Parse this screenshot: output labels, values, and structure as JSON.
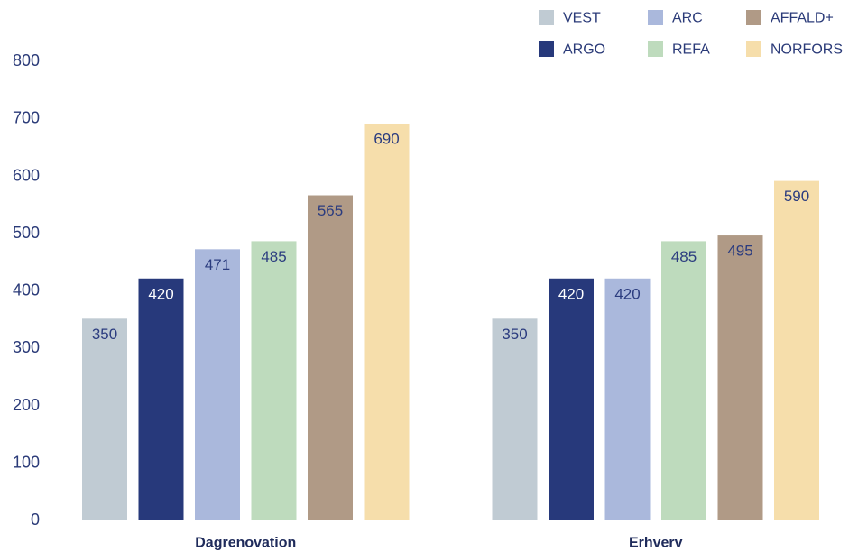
{
  "chart_data": {
    "type": "bar",
    "categories": [
      "Dagrenovation",
      "Erhverv"
    ],
    "series": [
      {
        "name": "VEST",
        "color": "#C0CBD3",
        "label_color": "#2B3C7F",
        "values": [
          350,
          350
        ]
      },
      {
        "name": "ARGO",
        "color": "#27397B",
        "label_color": "#FFFFFF",
        "values": [
          420,
          420
        ]
      },
      {
        "name": "ARC",
        "color": "#AAB8DC",
        "label_color": "#2B3C7F",
        "values": [
          471,
          420
        ]
      },
      {
        "name": "REFA",
        "color": "#BEDBBD",
        "label_color": "#2B3C7F",
        "values": [
          485,
          485
        ]
      },
      {
        "name": "AFFALD+",
        "color": "#B09A86",
        "label_color": "#2B3C7F",
        "values": [
          565,
          495
        ]
      },
      {
        "name": "NORFORS",
        "color": "#F6DEAB",
        "label_color": "#2B3C7F",
        "values": [
          690,
          590
        ]
      }
    ],
    "ylim": [
      0,
      800
    ],
    "yticks": [
      0,
      100,
      200,
      300,
      400,
      500,
      600,
      700,
      800
    ],
    "data_labels": true,
    "grid": false,
    "legend": "top-right"
  }
}
